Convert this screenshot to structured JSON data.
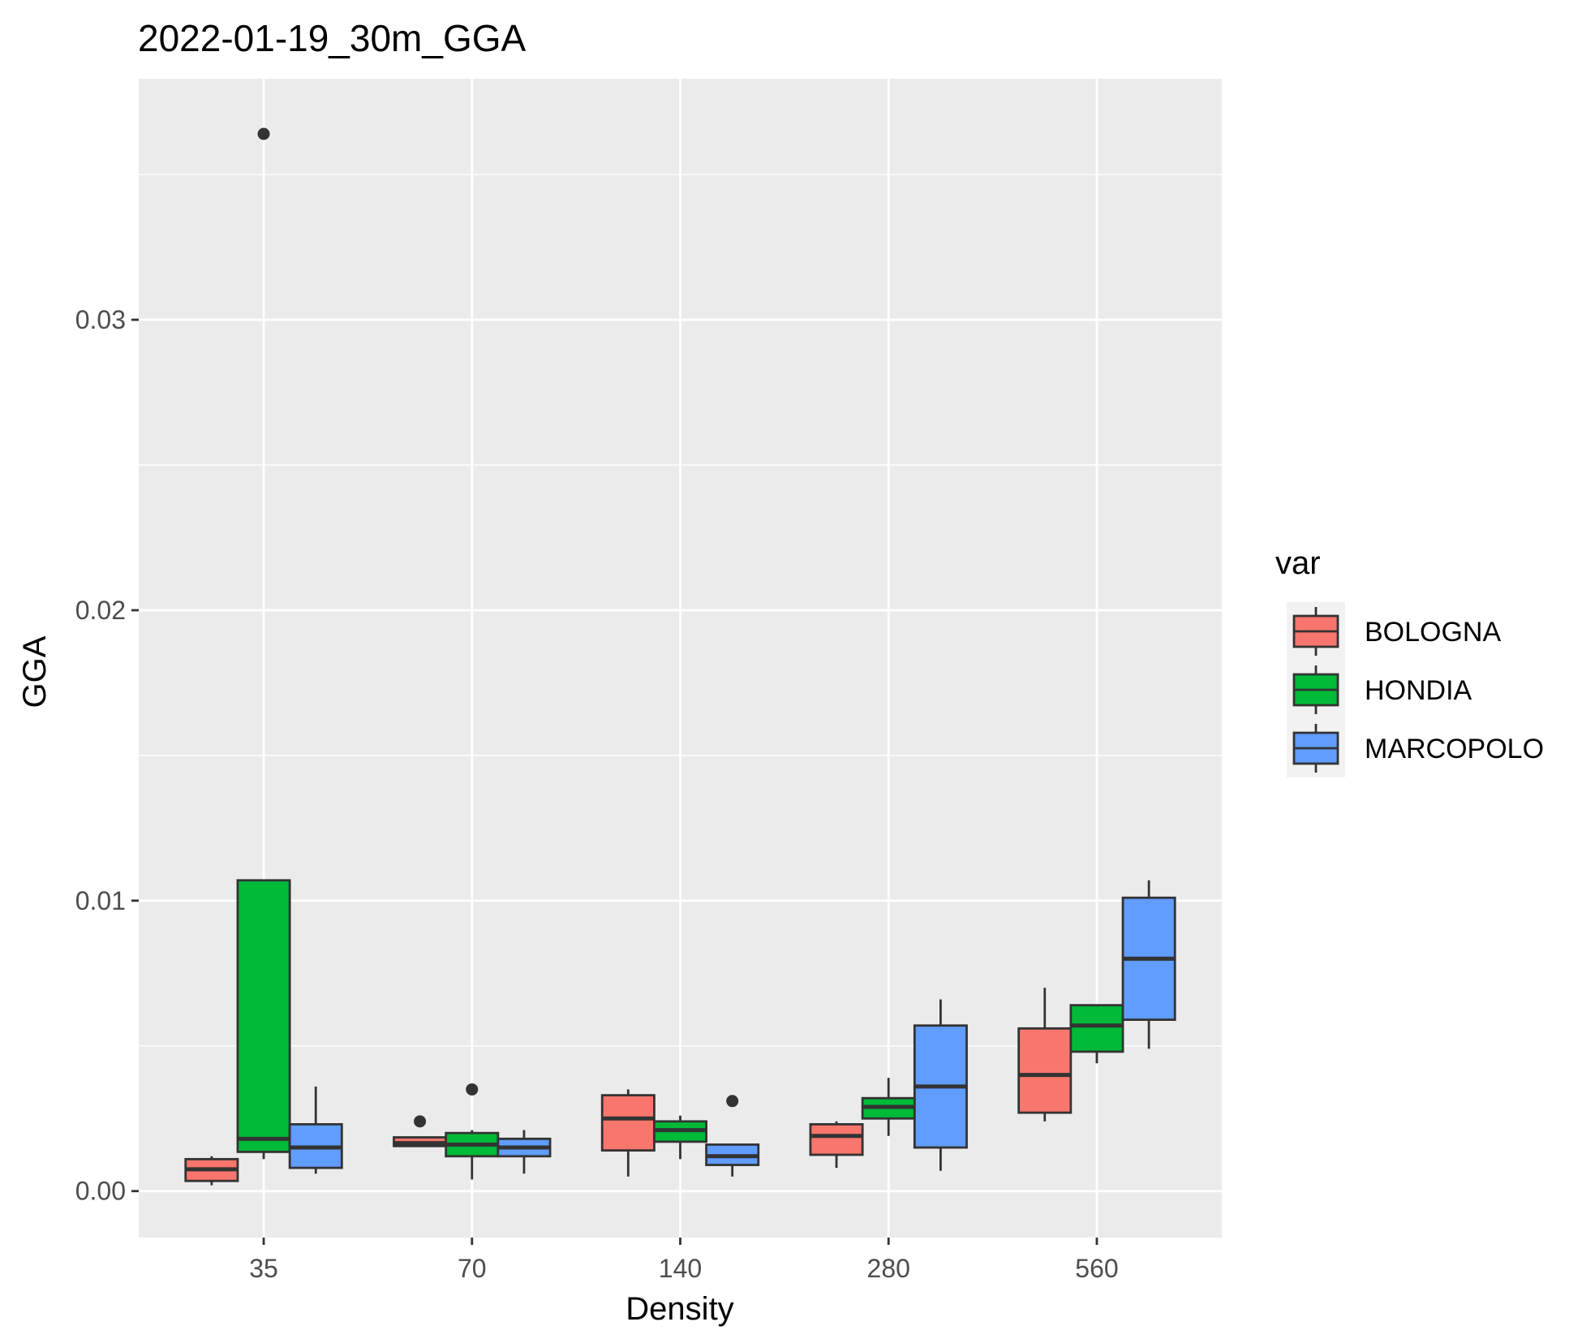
{
  "chart_data": {
    "type": "boxplot",
    "title": "2022-01-19_30m_GGA",
    "xlabel": "Density",
    "ylabel": "GGA",
    "categories": [
      "35",
      "70",
      "140",
      "280",
      "560"
    ],
    "y_ticks": [
      0.0,
      0.01,
      0.02,
      0.03
    ],
    "y_tick_labels": [
      "0.00",
      "0.01",
      "0.02",
      "0.03"
    ],
    "ylim": [
      -0.0016,
      0.0383
    ],
    "grid": true,
    "legend": {
      "title": "var",
      "position": "right"
    },
    "series": [
      {
        "name": "BOLOGNA",
        "color": "#F8766D",
        "boxes": [
          {
            "lower": 0.0002,
            "q1": 0.00035,
            "median": 0.00075,
            "q3": 0.0011,
            "upper": 0.0012,
            "outliers": []
          },
          {
            "lower": 0.00155,
            "q1": 0.00155,
            "median": 0.00165,
            "q3": 0.00185,
            "upper": 0.00185,
            "outliers": [
              0.0024
            ]
          },
          {
            "lower": 0.0005,
            "q1": 0.0014,
            "median": 0.0025,
            "q3": 0.0033,
            "upper": 0.0035,
            "outliers": []
          },
          {
            "lower": 0.0008,
            "q1": 0.00125,
            "median": 0.0019,
            "q3": 0.0023,
            "upper": 0.0024,
            "outliers": []
          },
          {
            "lower": 0.0024,
            "q1": 0.0027,
            "median": 0.004,
            "q3": 0.0056,
            "upper": 0.007,
            "outliers": []
          }
        ]
      },
      {
        "name": "HONDIA",
        "color": "#00BA38",
        "boxes": [
          {
            "lower": 0.0011,
            "q1": 0.00135,
            "median": 0.0018,
            "q3": 0.0107,
            "upper": 0.0107,
            "outliers": [
              0.0364
            ]
          },
          {
            "lower": 0.0004,
            "q1": 0.0012,
            "median": 0.0016,
            "q3": 0.002,
            "upper": 0.0021,
            "outliers": [
              0.0035
            ]
          },
          {
            "lower": 0.0011,
            "q1": 0.0017,
            "median": 0.0021,
            "q3": 0.0024,
            "upper": 0.0026,
            "outliers": []
          },
          {
            "lower": 0.0019,
            "q1": 0.0025,
            "median": 0.0029,
            "q3": 0.0032,
            "upper": 0.0039,
            "outliers": []
          },
          {
            "lower": 0.0044,
            "q1": 0.0048,
            "median": 0.0057,
            "q3": 0.0064,
            "upper": 0.0064,
            "outliers": []
          }
        ]
      },
      {
        "name": "MARCOPOLO",
        "color": "#619CFF",
        "boxes": [
          {
            "lower": 0.0006,
            "q1": 0.0008,
            "median": 0.0015,
            "q3": 0.0023,
            "upper": 0.0036,
            "outliers": []
          },
          {
            "lower": 0.0006,
            "q1": 0.0012,
            "median": 0.0015,
            "q3": 0.0018,
            "upper": 0.0021,
            "outliers": []
          },
          {
            "lower": 0.0005,
            "q1": 0.0009,
            "median": 0.0012,
            "q3": 0.0016,
            "upper": 0.0016,
            "outliers": [
              0.0031
            ]
          },
          {
            "lower": 0.0007,
            "q1": 0.0015,
            "median": 0.0036,
            "q3": 0.0057,
            "upper": 0.0066,
            "outliers": []
          },
          {
            "lower": 0.0049,
            "q1": 0.0059,
            "median": 0.008,
            "q3": 0.0101,
            "upper": 0.0107,
            "outliers": []
          }
        ]
      }
    ]
  }
}
